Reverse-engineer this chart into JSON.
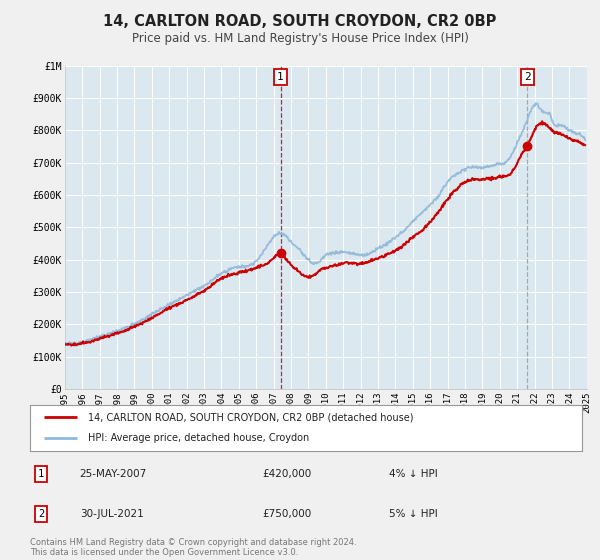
{
  "title": "14, CARLTON ROAD, SOUTH CROYDON, CR2 0BP",
  "subtitle": "Price paid vs. HM Land Registry's House Price Index (HPI)",
  "title_fontsize": 10.5,
  "subtitle_fontsize": 8.5,
  "background_color": "#f0f0f0",
  "plot_bg_color": "#dce8f0",
  "grid_color": "#ffffff",
  "red_line_color": "#cc0000",
  "blue_line_color": "#90b8d8",
  "marker1_x": 2007.4,
  "marker1_y": 420000,
  "marker2_x": 2021.58,
  "marker2_y": 750000,
  "annotation1_label": "1",
  "annotation2_label": "2",
  "vline1_x": 2007.4,
  "vline2_x": 2021.58,
  "xmin": 1995,
  "xmax": 2025,
  "ymin": 0,
  "ymax": 1000000,
  "yticks": [
    0,
    100000,
    200000,
    300000,
    400000,
    500000,
    600000,
    700000,
    800000,
    900000,
    1000000
  ],
  "ytick_labels": [
    "£0",
    "£100K",
    "£200K",
    "£300K",
    "£400K",
    "£500K",
    "£600K",
    "£700K",
    "£800K",
    "£900K",
    "£1M"
  ],
  "xticks": [
    1995,
    1996,
    1997,
    1998,
    1999,
    2000,
    2001,
    2002,
    2003,
    2004,
    2005,
    2006,
    2007,
    2008,
    2009,
    2010,
    2011,
    2012,
    2013,
    2014,
    2015,
    2016,
    2017,
    2018,
    2019,
    2020,
    2021,
    2022,
    2023,
    2024,
    2025
  ],
  "legend_line1": "14, CARLTON ROAD, SOUTH CROYDON, CR2 0BP (detached house)",
  "legend_line2": "HPI: Average price, detached house, Croydon",
  "info1_label": "1",
  "info1_date": "25-MAY-2007",
  "info1_price": "£420,000",
  "info1_hpi": "4% ↓ HPI",
  "info2_label": "2",
  "info2_date": "30-JUL-2021",
  "info2_price": "£750,000",
  "info2_hpi": "5% ↓ HPI",
  "footer": "Contains HM Land Registry data © Crown copyright and database right 2024.\nThis data is licensed under the Open Government Licence v3.0."
}
